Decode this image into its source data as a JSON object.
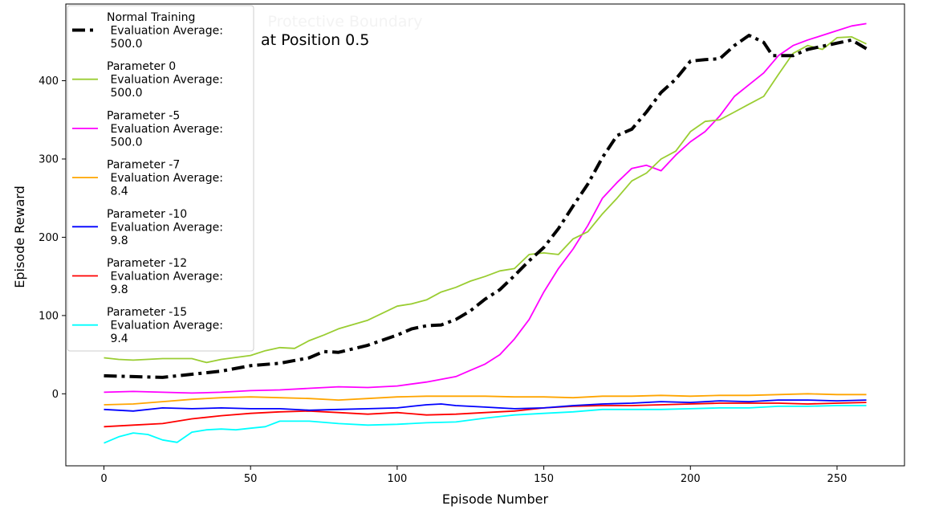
{
  "chart_data": {
    "type": "line",
    "title": "Protective Boundary",
    "annotation": "at Position 0.5",
    "xlabel": "Episode Number",
    "ylabel": "Episode Reward",
    "xlim": [
      -13,
      273
    ],
    "ylim": [
      -92,
      498
    ],
    "xticks": [
      0,
      50,
      100,
      150,
      200,
      250
    ],
    "yticks": [
      0,
      100,
      200,
      300,
      400
    ],
    "grid": false,
    "legend_position": "top-left",
    "series": [
      {
        "name": "Normal Training\n Evaluation Average:\n 500.0",
        "color": "#000000",
        "style": "dashdot",
        "width": 4,
        "points": [
          [
            0,
            23
          ],
          [
            10,
            22
          ],
          [
            20,
            21
          ],
          [
            30,
            25
          ],
          [
            40,
            29
          ],
          [
            50,
            36
          ],
          [
            60,
            39
          ],
          [
            70,
            46
          ],
          [
            75,
            54
          ],
          [
            80,
            53
          ],
          [
            90,
            62
          ],
          [
            100,
            75
          ],
          [
            105,
            83
          ],
          [
            110,
            87
          ],
          [
            115,
            88
          ],
          [
            120,
            95
          ],
          [
            125,
            106
          ],
          [
            130,
            121
          ],
          [
            135,
            133
          ],
          [
            140,
            151
          ],
          [
            145,
            170
          ],
          [
            150,
            187
          ],
          [
            155,
            211
          ],
          [
            160,
            240
          ],
          [
            165,
            268
          ],
          [
            170,
            302
          ],
          [
            175,
            330
          ],
          [
            180,
            338
          ],
          [
            185,
            360
          ],
          [
            190,
            385
          ],
          [
            195,
            402
          ],
          [
            200,
            425
          ],
          [
            205,
            427
          ],
          [
            210,
            428
          ],
          [
            215,
            445
          ],
          [
            220,
            458
          ],
          [
            225,
            449
          ],
          [
            228,
            432
          ],
          [
            235,
            432
          ],
          [
            240,
            440
          ],
          [
            245,
            444
          ],
          [
            250,
            448
          ],
          [
            255,
            452
          ],
          [
            260,
            441
          ]
        ]
      },
      {
        "name": "Parameter 0\n Evaluation Average:\n 500.0",
        "color": "#9acd32",
        "style": "solid",
        "width": 1.8,
        "points": [
          [
            0,
            46
          ],
          [
            5,
            44
          ],
          [
            10,
            43
          ],
          [
            20,
            45
          ],
          [
            30,
            45
          ],
          [
            35,
            40
          ],
          [
            40,
            44
          ],
          [
            50,
            49
          ],
          [
            55,
            55
          ],
          [
            60,
            59
          ],
          [
            65,
            58
          ],
          [
            70,
            68
          ],
          [
            75,
            75
          ],
          [
            80,
            83
          ],
          [
            90,
            94
          ],
          [
            100,
            112
          ],
          [
            105,
            115
          ],
          [
            110,
            120
          ],
          [
            115,
            130
          ],
          [
            120,
            136
          ],
          [
            125,
            144
          ],
          [
            130,
            150
          ],
          [
            135,
            157
          ],
          [
            140,
            160
          ],
          [
            145,
            178
          ],
          [
            150,
            180
          ],
          [
            155,
            178
          ],
          [
            160,
            198
          ],
          [
            165,
            207
          ],
          [
            170,
            230
          ],
          [
            175,
            250
          ],
          [
            180,
            272
          ],
          [
            185,
            282
          ],
          [
            190,
            300
          ],
          [
            195,
            310
          ],
          [
            200,
            335
          ],
          [
            205,
            348
          ],
          [
            210,
            350
          ],
          [
            215,
            360
          ],
          [
            220,
            370
          ],
          [
            225,
            380
          ],
          [
            230,
            408
          ],
          [
            235,
            435
          ],
          [
            240,
            445
          ],
          [
            245,
            440
          ],
          [
            250,
            455
          ],
          [
            255,
            456
          ],
          [
            260,
            447
          ]
        ]
      },
      {
        "name": "Parameter -5\n Evaluation Average:\n 500.0",
        "color": "#ff00ff",
        "style": "solid",
        "width": 1.8,
        "points": [
          [
            0,
            2
          ],
          [
            10,
            3
          ],
          [
            20,
            2
          ],
          [
            30,
            1
          ],
          [
            40,
            2
          ],
          [
            50,
            4
          ],
          [
            60,
            5
          ],
          [
            70,
            7
          ],
          [
            80,
            9
          ],
          [
            90,
            8
          ],
          [
            100,
            10
          ],
          [
            110,
            15
          ],
          [
            120,
            22
          ],
          [
            125,
            30
          ],
          [
            130,
            38
          ],
          [
            135,
            50
          ],
          [
            140,
            70
          ],
          [
            145,
            95
          ],
          [
            150,
            130
          ],
          [
            155,
            160
          ],
          [
            160,
            185
          ],
          [
            165,
            215
          ],
          [
            170,
            250
          ],
          [
            175,
            270
          ],
          [
            180,
            288
          ],
          [
            185,
            292
          ],
          [
            190,
            285
          ],
          [
            195,
            305
          ],
          [
            200,
            322
          ],
          [
            205,
            335
          ],
          [
            210,
            355
          ],
          [
            215,
            380
          ],
          [
            220,
            395
          ],
          [
            225,
            410
          ],
          [
            230,
            432
          ],
          [
            235,
            445
          ],
          [
            240,
            452
          ],
          [
            245,
            458
          ],
          [
            250,
            464
          ],
          [
            255,
            470
          ],
          [
            260,
            473
          ]
        ]
      },
      {
        "name": "Parameter -7\n Evaluation Average:\n 8.4",
        "color": "#ffa500",
        "style": "solid",
        "width": 1.8,
        "points": [
          [
            0,
            -14
          ],
          [
            10,
            -13
          ],
          [
            20,
            -10
          ],
          [
            30,
            -7
          ],
          [
            40,
            -5
          ],
          [
            50,
            -4
          ],
          [
            60,
            -5
          ],
          [
            70,
            -6
          ],
          [
            80,
            -8
          ],
          [
            90,
            -6
          ],
          [
            100,
            -4
          ],
          [
            110,
            -3
          ],
          [
            120,
            -3
          ],
          [
            130,
            -3
          ],
          [
            140,
            -4
          ],
          [
            150,
            -4
          ],
          [
            160,
            -5
          ],
          [
            170,
            -3
          ],
          [
            180,
            -3
          ],
          [
            190,
            -2
          ],
          [
            200,
            -3
          ],
          [
            210,
            -2
          ],
          [
            220,
            -2
          ],
          [
            230,
            -1
          ],
          [
            240,
            0
          ],
          [
            250,
            -1
          ],
          [
            260,
            -1
          ]
        ]
      },
      {
        "name": "Parameter -10\n Evaluation Average:\n 9.8",
        "color": "#0000ff",
        "style": "solid",
        "width": 1.8,
        "points": [
          [
            0,
            -20
          ],
          [
            10,
            -22
          ],
          [
            20,
            -18
          ],
          [
            30,
            -19
          ],
          [
            40,
            -18
          ],
          [
            50,
            -19
          ],
          [
            60,
            -19
          ],
          [
            70,
            -21
          ],
          [
            80,
            -20
          ],
          [
            90,
            -19
          ],
          [
            100,
            -18
          ],
          [
            105,
            -16
          ],
          [
            110,
            -14
          ],
          [
            115,
            -13
          ],
          [
            120,
            -15
          ],
          [
            130,
            -17
          ],
          [
            140,
            -19
          ],
          [
            150,
            -18
          ],
          [
            160,
            -15
          ],
          [
            170,
            -13
          ],
          [
            180,
            -12
          ],
          [
            190,
            -10
          ],
          [
            200,
            -11
          ],
          [
            210,
            -9
          ],
          [
            220,
            -10
          ],
          [
            230,
            -8
          ],
          [
            240,
            -8
          ],
          [
            250,
            -9
          ],
          [
            260,
            -8
          ]
        ]
      },
      {
        "name": "Parameter -12\n Evaluation Average:\n 9.8",
        "color": "#ff0000",
        "style": "solid",
        "width": 1.8,
        "points": [
          [
            0,
            -42
          ],
          [
            10,
            -40
          ],
          [
            20,
            -38
          ],
          [
            30,
            -32
          ],
          [
            40,
            -28
          ],
          [
            50,
            -25
          ],
          [
            60,
            -23
          ],
          [
            70,
            -22
          ],
          [
            80,
            -24
          ],
          [
            90,
            -26
          ],
          [
            100,
            -24
          ],
          [
            110,
            -27
          ],
          [
            120,
            -26
          ],
          [
            130,
            -24
          ],
          [
            140,
            -22
          ],
          [
            150,
            -18
          ],
          [
            160,
            -16
          ],
          [
            170,
            -15
          ],
          [
            180,
            -15
          ],
          [
            190,
            -14
          ],
          [
            200,
            -13
          ],
          [
            210,
            -12
          ],
          [
            220,
            -12
          ],
          [
            230,
            -12
          ],
          [
            240,
            -13
          ],
          [
            250,
            -12
          ],
          [
            260,
            -11
          ]
        ]
      },
      {
        "name": "Parameter -15\n Evaluation Average:\n 9.4",
        "color": "#00ffff",
        "style": "solid",
        "width": 1.8,
        "points": [
          [
            0,
            -63
          ],
          [
            5,
            -55
          ],
          [
            10,
            -50
          ],
          [
            15,
            -52
          ],
          [
            20,
            -59
          ],
          [
            25,
            -62
          ],
          [
            30,
            -49
          ],
          [
            35,
            -46
          ],
          [
            40,
            -45
          ],
          [
            45,
            -46
          ],
          [
            50,
            -44
          ],
          [
            55,
            -42
          ],
          [
            60,
            -35
          ],
          [
            70,
            -35
          ],
          [
            80,
            -38
          ],
          [
            90,
            -40
          ],
          [
            100,
            -39
          ],
          [
            110,
            -37
          ],
          [
            120,
            -36
          ],
          [
            130,
            -31
          ],
          [
            140,
            -27
          ],
          [
            150,
            -25
          ],
          [
            160,
            -23
          ],
          [
            170,
            -20
          ],
          [
            180,
            -20
          ],
          [
            190,
            -20
          ],
          [
            200,
            -19
          ],
          [
            210,
            -18
          ],
          [
            220,
            -18
          ],
          [
            230,
            -16
          ],
          [
            240,
            -16
          ],
          [
            250,
            -15
          ],
          [
            260,
            -15
          ]
        ]
      }
    ]
  }
}
